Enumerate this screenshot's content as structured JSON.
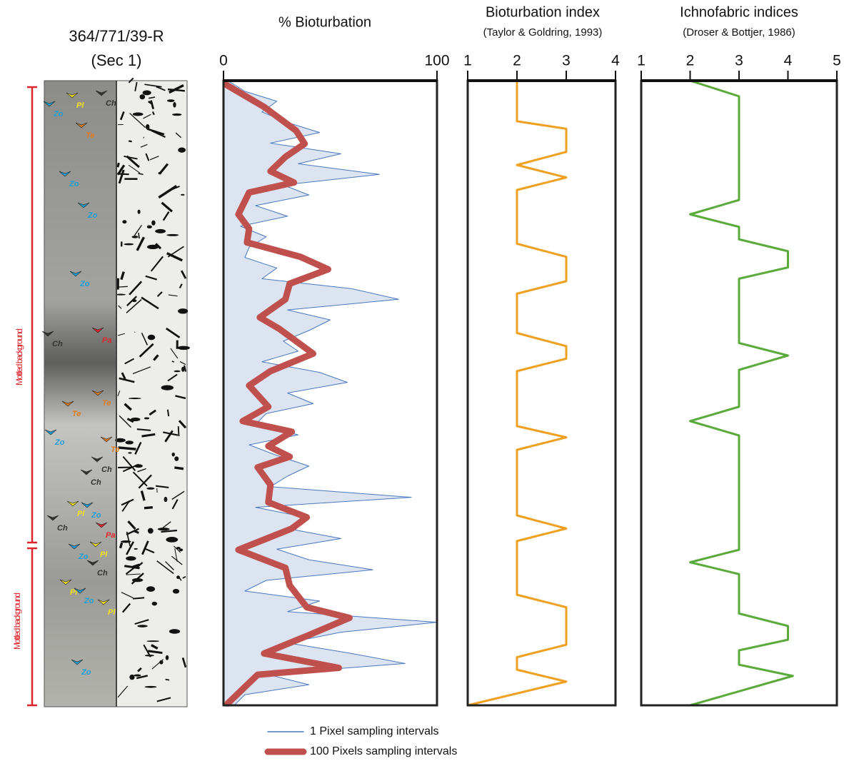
{
  "core": {
    "title": "364/771/39-R",
    "subtitle": "(Sec 1)",
    "interval_labels": [
      "Mottled background",
      "Mottled background"
    ],
    "trace_labels": [
      "Ch",
      "Pl",
      "Zo",
      "Te",
      "Zo",
      "Zo",
      "Zo",
      "Pa",
      "Ch",
      "Te",
      "Te",
      "Zo",
      "Te",
      "Ch",
      "Ch",
      "Pl",
      "Zo",
      "Ch",
      "Pa",
      "Zo",
      "Pl",
      "Ch",
      "Pl",
      "Zo",
      "Pl",
      "Zo"
    ]
  },
  "chart_data": [
    {
      "type": "line",
      "title": "% Bioturbation",
      "xlim": [
        0,
        100
      ],
      "xticks": [
        0,
        100
      ],
      "ylim": [
        0,
        100
      ],
      "series": [
        {
          "name": "1 Pixel sampling intervals",
          "color": "#4a78c0",
          "y": [
            0,
            1.7,
            3.3,
            5,
            6.7,
            8.3,
            10,
            11.7,
            13.3,
            15,
            16.7,
            18.3,
            20,
            21.7,
            23.3,
            25,
            26.7,
            28.3,
            30,
            31.7,
            33.3,
            35,
            36.7,
            38.3,
            40,
            41.7,
            43.3,
            45,
            46.7,
            48.3,
            50,
            51.7,
            53.3,
            55,
            56.7,
            58.3,
            60,
            61.7,
            63.3,
            65,
            66.7,
            68.3,
            70,
            71.7,
            73.3,
            75,
            76.7,
            78.3,
            80,
            81.7,
            83.3,
            85,
            86.7,
            88.3,
            90,
            91.7,
            93.3,
            95,
            96.7,
            98.3,
            100
          ],
          "values": [
            2,
            10,
            25,
            18,
            30,
            45,
            22,
            55,
            35,
            73,
            28,
            40,
            15,
            30,
            8,
            20,
            12,
            10,
            25,
            18,
            60,
            82,
            30,
            50,
            40,
            28,
            35,
            18,
            45,
            58,
            30,
            42,
            20,
            15,
            35,
            12,
            25,
            40,
            30,
            22,
            88,
            15,
            40,
            30,
            55,
            25,
            40,
            70,
            20,
            10,
            45,
            30,
            100,
            55,
            30,
            60,
            85,
            20,
            40,
            10,
            5
          ]
        },
        {
          "name": "100 Pixels sampling intervals",
          "color": "#c0504d",
          "y": [
            0.6,
            4.2,
            8,
            10.1,
            12.2,
            14.5,
            16.3,
            17.9,
            21.4,
            23.7,
            25.9,
            28.2,
            30.2,
            32.5,
            35,
            37.9,
            39.7,
            43.7,
            46.5,
            48.8,
            52.2,
            54.5,
            56.2,
            58.5,
            60.2,
            61.9,
            64.7,
            67.5,
            69.9,
            71.7,
            75.1,
            78,
            80.8,
            84.3,
            86,
            88.9,
            91.7,
            94,
            95.1,
            99.7
          ],
          "values": [
            1,
            19,
            34,
            38,
            29,
            22,
            33,
            12,
            7,
            12,
            11,
            36,
            49,
            31,
            29,
            17,
            26,
            42,
            22,
            12,
            21,
            9,
            32,
            21,
            31,
            16,
            22,
            21,
            39,
            32,
            7,
            29,
            31,
            39,
            59,
            39,
            19,
            54,
            16,
            2
          ]
        }
      ]
    },
    {
      "type": "line",
      "title": "Bioturbation index",
      "subtitle": "(Taylor & Goldring, 1993)",
      "xlim": [
        1,
        4
      ],
      "xticks": [
        1,
        2,
        3,
        4
      ],
      "ylim": [
        0,
        100
      ],
      "series": [
        {
          "color": "#f0a020",
          "y": [
            0,
            6.5,
            7.7,
            11.4,
            13.5,
            15.5,
            17.5,
            26.1,
            28.2,
            32.1,
            34.1,
            40.4,
            42.5,
            44.5,
            46.5,
            55.3,
            57.1,
            59.1,
            69.6,
            71.7,
            73.7,
            82.3,
            84.3,
            90.3,
            92.3,
            94.3,
            96.2,
            100
          ],
          "values": [
            2,
            2,
            3,
            3,
            2,
            3,
            2,
            2,
            3,
            3,
            2,
            2,
            3,
            3,
            2,
            2,
            3,
            2,
            2,
            3,
            2,
            2,
            3,
            3,
            2,
            2,
            3,
            1
          ]
        }
      ]
    },
    {
      "type": "line",
      "title": "Ichnofabric indices",
      "subtitle": "(Droser & Bottjer, 1986)",
      "xlim": [
        1,
        5
      ],
      "xticks": [
        1,
        2,
        3,
        4,
        5
      ],
      "ylim": [
        0,
        100
      ],
      "series": [
        {
          "color": "#5aab3c",
          "y": [
            0,
            2.5,
            19.1,
            21.4,
            23.4,
            25.4,
            27.3,
            29.9,
            31.7,
            42,
            44,
            46.3,
            52.2,
            54.5,
            56.8,
            75.1,
            77.1,
            79,
            85.3,
            87.3,
            89.5,
            91.2,
            93.5,
            95.3,
            100
          ],
          "values": [
            2,
            3,
            3,
            2,
            3,
            3,
            4,
            4,
            3,
            3,
            4,
            3,
            3,
            2,
            3,
            3,
            2,
            3,
            3,
            4,
            4,
            3,
            3,
            4.1,
            2
          ]
        }
      ]
    }
  ]
}
